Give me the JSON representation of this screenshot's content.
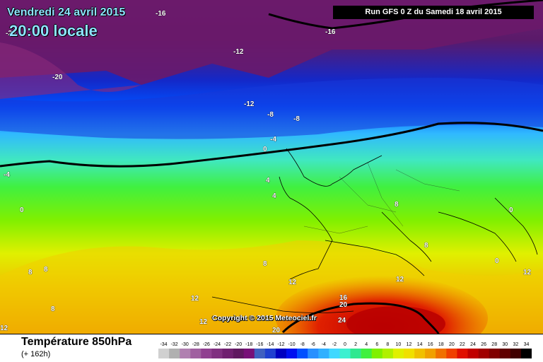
{
  "header": {
    "date": "Vendredi 24 avril 2015",
    "time": "20:00 locale",
    "run": "Run GFS 0 Z du Samedi 18 avril 2015"
  },
  "copyright": "Copyright © 2015 Meteociel.fr",
  "footer": {
    "title": "Température 850hPa",
    "subtitle": "(+ 162h)"
  },
  "legend": {
    "ticks": [
      "-34",
      "-32",
      "-30",
      "-28",
      "-26",
      "-24",
      "-22",
      "-20",
      "-18",
      "-16",
      "-14",
      "-12",
      "-10",
      "-8",
      "-6",
      "-4",
      "-2",
      "0",
      "2",
      "4",
      "6",
      "8",
      "10",
      "12",
      "14",
      "16",
      "18",
      "20",
      "22",
      "24",
      "26",
      "28",
      "30",
      "32",
      "34"
    ],
    "colors": [
      "#d0d0d0",
      "#b0b0b0",
      "#b080b0",
      "#a060a0",
      "#904090",
      "#803080",
      "#702070",
      "#601860",
      "#781078",
      "#4060c0",
      "#2040d0",
      "#0000c0",
      "#0010f0",
      "#0050ff",
      "#2890ff",
      "#30b0ff",
      "#40d8ff",
      "#3cf0d0",
      "#30e890",
      "#40f040",
      "#80f000",
      "#b0f000",
      "#e0f000",
      "#f0e000",
      "#f0c000",
      "#f0a000",
      "#f07000",
      "#f04000",
      "#e01000",
      "#c00000",
      "#a00000",
      "#800000",
      "#600000",
      "#400000",
      "#000000"
    ]
  },
  "contour_labels": [
    "-16",
    "-20",
    "-16",
    "-12",
    "-20",
    "-12",
    "-8",
    "-8",
    "-4",
    "0",
    "-4",
    "0",
    "4",
    "4",
    "8",
    "8",
    "0",
    "0",
    "8",
    "8",
    "8",
    "12",
    "8",
    "12",
    "16",
    "20",
    "24",
    "12",
    "12",
    "20",
    "12",
    "12"
  ]
}
